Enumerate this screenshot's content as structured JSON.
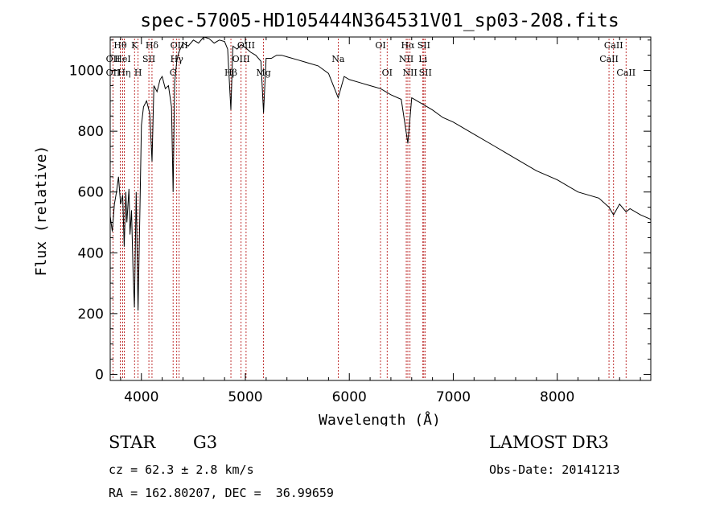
{
  "chart_data": {
    "type": "line",
    "title": "spec-57005-HD105444N364531V01_sp03-208.fits",
    "xlabel": "Wavelength (Å)",
    "ylabel": "Flux (relative)",
    "xlim": [
      3700,
      8900
    ],
    "ylim": [
      -20,
      1110
    ],
    "xticks": [
      4000,
      5000,
      6000,
      7000,
      8000
    ],
    "yticks": [
      0,
      200,
      400,
      600,
      800,
      1000
    ],
    "series": [
      {
        "name": "spectrum",
        "x": [
          3700,
          3720,
          3740,
          3760,
          3780,
          3800,
          3820,
          3835,
          3850,
          3860,
          3880,
          3890,
          3905,
          3920,
          3933,
          3950,
          3968,
          3985,
          4000,
          4020,
          4050,
          4080,
          4102,
          4120,
          4150,
          4180,
          4200,
          4230,
          4260,
          4290,
          4305,
          4320,
          4340,
          4360,
          4400,
          4450,
          4500,
          4550,
          4600,
          4650,
          4700,
          4750,
          4800,
          4830,
          4861,
          4880,
          4920,
          4960,
          5000,
          5050,
          5100,
          5150,
          5175,
          5200,
          5250,
          5300,
          5350,
          5400,
          5500,
          5600,
          5700,
          5800,
          5893,
          5950,
          6000,
          6100,
          6200,
          6300,
          6400,
          6500,
          6563,
          6600,
          6700,
          6800,
          6900,
          7000,
          7200,
          7400,
          7600,
          7800,
          8000,
          8200,
          8400,
          8498,
          8542,
          8600,
          8662,
          8700,
          8800,
          8900
        ],
        "y": [
          520,
          470,
          560,
          600,
          650,
          560,
          590,
          420,
          600,
          500,
          610,
          460,
          540,
          340,
          220,
          600,
          210,
          520,
          820,
          880,
          900,
          860,
          700,
          950,
          930,
          970,
          980,
          940,
          950,
          880,
          600,
          960,
          1030,
          1060,
          1090,
          1080,
          1100,
          1090,
          1110,
          1105,
          1090,
          1100,
          1095,
          1070,
          870,
          1080,
          1070,
          1085,
          1075,
          1060,
          1050,
          1030,
          860,
          1040,
          1040,
          1050,
          1050,
          1045,
          1035,
          1025,
          1015,
          990,
          910,
          980,
          970,
          960,
          950,
          940,
          920,
          905,
          760,
          910,
          890,
          870,
          845,
          830,
          790,
          750,
          710,
          670,
          640,
          600,
          580,
          550,
          525,
          560,
          535,
          545,
          525,
          510
        ]
      }
    ],
    "lines": [
      {
        "label": "OII",
        "x": 3727,
        "row": 2
      },
      {
        "label": "OII",
        "x": 3727,
        "row": 3
      },
      {
        "label": "Hθ",
        "x": 3797,
        "row": 1
      },
      {
        "label": "HeI",
        "x": 3820,
        "row": 2
      },
      {
        "label": "Hη",
        "x": 3835,
        "row": 3
      },
      {
        "label": "K",
        "x": 3934,
        "row": 1
      },
      {
        "label": "H",
        "x": 3968,
        "row": 3
      },
      {
        "label": "Hδ",
        "x": 4102,
        "row": 1
      },
      {
        "label": "SII",
        "x": 4072,
        "row": 2
      },
      {
        "label": "OIII",
        "x": 4363,
        "row": 1
      },
      {
        "label": "Hγ",
        "x": 4340,
        "row": 2
      },
      {
        "label": "G",
        "x": 4305,
        "row": 3
      },
      {
        "label": "Hβ",
        "x": 4861,
        "row": 3
      },
      {
        "label": "OIII",
        "x": 5007,
        "row": 1
      },
      {
        "label": "OIII",
        "x": 4959,
        "row": 2
      },
      {
        "label": "Mg",
        "x": 5175,
        "row": 3
      },
      {
        "label": "Na",
        "x": 5893,
        "row": 2
      },
      {
        "label": "OI",
        "x": 6300,
        "row": 1
      },
      {
        "label": "OI",
        "x": 6364,
        "row": 3
      },
      {
        "label": "Hα",
        "x": 6563,
        "row": 1
      },
      {
        "label": "NII",
        "x": 6548,
        "row": 2
      },
      {
        "label": "NII",
        "x": 6584,
        "row": 3
      },
      {
        "label": "SII",
        "x": 6717,
        "row": 1
      },
      {
        "label": "Li",
        "x": 6708,
        "row": 2
      },
      {
        "label": "SII",
        "x": 6731,
        "row": 3
      },
      {
        "label": "CaII",
        "x": 8542,
        "row": 1
      },
      {
        "label": "CaII",
        "x": 8498,
        "row": 2
      },
      {
        "label": "CaII",
        "x": 8662,
        "row": 3
      }
    ]
  },
  "info": {
    "object_type": "STAR",
    "subclass": "G3",
    "survey": "LAMOST DR3",
    "redshift": "cz = 62.3 ± 2.8 km/s",
    "obs_date": "Obs-Date: 20141213",
    "coords": "RA = 162.80207, DEC =  36.99659"
  },
  "colors": {
    "spectrum": "#000000",
    "line_marker": "#b00000",
    "axis": "#000000"
  }
}
